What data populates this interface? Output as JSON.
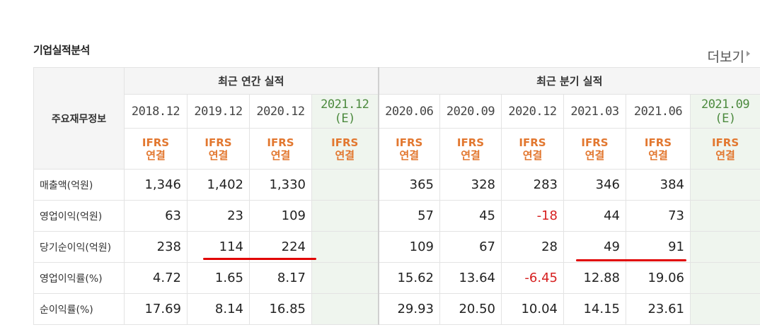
{
  "section": {
    "title": "기업실적분석",
    "more_label": "더보기"
  },
  "table": {
    "corner_label": "주요재무정보",
    "group_annual": "최근 연간 실적",
    "group_quarter": "최근 분기 실적",
    "periods": [
      {
        "label": "2018.12",
        "sub": ""
      },
      {
        "label": "2019.12",
        "sub": ""
      },
      {
        "label": "2020.12",
        "sub": ""
      },
      {
        "label": "2021.12",
        "sub": "(E)"
      },
      {
        "label": "2020.06",
        "sub": ""
      },
      {
        "label": "2020.09",
        "sub": ""
      },
      {
        "label": "2020.12",
        "sub": ""
      },
      {
        "label": "2021.03",
        "sub": ""
      },
      {
        "label": "2021.06",
        "sub": ""
      },
      {
        "label": "2021.09",
        "sub": "(E)"
      }
    ],
    "basis_top": "IFRS",
    "basis_bottom": "연결",
    "rows": [
      {
        "label": "매출액(억원)",
        "values": [
          "1,346",
          "1,402",
          "1,330",
          "",
          "365",
          "328",
          "283",
          "346",
          "384",
          ""
        ]
      },
      {
        "label": "영업이익(억원)",
        "values": [
          "63",
          "23",
          "109",
          "",
          "57",
          "45",
          "-18",
          "44",
          "73",
          ""
        ]
      },
      {
        "label": "당기순이익(억원)",
        "values": [
          "238",
          "114",
          "224",
          "",
          "109",
          "67",
          "28",
          "49",
          "91",
          ""
        ]
      },
      {
        "label": "영업이익률(%)",
        "values": [
          "4.72",
          "1.65",
          "8.17",
          "",
          "15.62",
          "13.64",
          "-6.45",
          "12.88",
          "19.06",
          ""
        ]
      },
      {
        "label": "순이익률(%)",
        "values": [
          "17.69",
          "8.14",
          "16.85",
          "",
          "29.93",
          "20.50",
          "10.04",
          "14.15",
          "23.61",
          ""
        ]
      }
    ]
  },
  "colors": {
    "negative": "#d62020",
    "ifrs": "#e2772f",
    "estimate_bg": "#eff5ee",
    "underline": "#e10000"
  }
}
